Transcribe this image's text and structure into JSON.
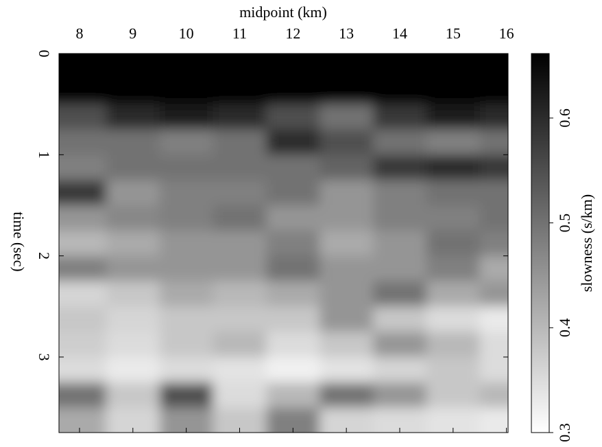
{
  "chart_data": {
    "type": "heatmap",
    "xlabel": "midpoint (km)",
    "ylabel": "time (sec)",
    "colorbar_label": "slowness (s/km)",
    "xlim": [
      7.615,
      16.03
    ],
    "xticks": [
      8,
      9,
      10,
      11,
      12,
      13,
      14,
      15,
      16
    ],
    "ylim": [
      3.747,
      0
    ],
    "yticks": [
      0,
      1,
      2,
      3
    ],
    "clim": [
      0.3,
      0.6615
    ],
    "cticks": [
      0.3,
      0.4,
      0.5,
      0.6
    ],
    "x": [
      8,
      9,
      10,
      11,
      12,
      13,
      14,
      15,
      16
    ],
    "y": [
      0.125,
      0.375,
      0.625,
      0.875,
      1.125,
      1.375,
      1.625,
      1.875,
      2.125,
      2.375,
      2.625,
      2.875,
      3.125,
      3.375,
      3.625
    ],
    "z": [
      [
        0.66,
        0.66,
        0.66,
        0.66,
        0.66,
        0.66,
        0.66,
        0.66,
        0.66
      ],
      [
        0.66,
        0.66,
        0.66,
        0.66,
        0.66,
        0.66,
        0.66,
        0.66,
        0.66
      ],
      [
        0.55,
        0.6,
        0.62,
        0.6,
        0.55,
        0.5,
        0.58,
        0.62,
        0.6
      ],
      [
        0.5,
        0.5,
        0.48,
        0.5,
        0.6,
        0.55,
        0.5,
        0.48,
        0.5
      ],
      [
        0.48,
        0.5,
        0.5,
        0.5,
        0.5,
        0.52,
        0.58,
        0.6,
        0.58
      ],
      [
        0.58,
        0.45,
        0.48,
        0.48,
        0.5,
        0.45,
        0.48,
        0.5,
        0.5
      ],
      [
        0.45,
        0.47,
        0.48,
        0.5,
        0.45,
        0.45,
        0.48,
        0.48,
        0.5
      ],
      [
        0.4,
        0.42,
        0.45,
        0.45,
        0.48,
        0.42,
        0.45,
        0.5,
        0.48
      ],
      [
        0.48,
        0.45,
        0.45,
        0.45,
        0.5,
        0.45,
        0.45,
        0.48,
        0.42
      ],
      [
        0.36,
        0.38,
        0.42,
        0.4,
        0.42,
        0.45,
        0.5,
        0.42,
        0.45
      ],
      [
        0.38,
        0.36,
        0.38,
        0.38,
        0.38,
        0.45,
        0.38,
        0.35,
        0.33
      ],
      [
        0.37,
        0.35,
        0.38,
        0.4,
        0.35,
        0.38,
        0.45,
        0.4,
        0.35
      ],
      [
        0.35,
        0.33,
        0.35,
        0.34,
        0.32,
        0.34,
        0.36,
        0.38,
        0.35
      ],
      [
        0.5,
        0.38,
        0.55,
        0.35,
        0.4,
        0.5,
        0.45,
        0.38,
        0.4
      ],
      [
        0.42,
        0.36,
        0.45,
        0.38,
        0.48,
        0.36,
        0.35,
        0.34,
        0.33
      ]
    ]
  }
}
